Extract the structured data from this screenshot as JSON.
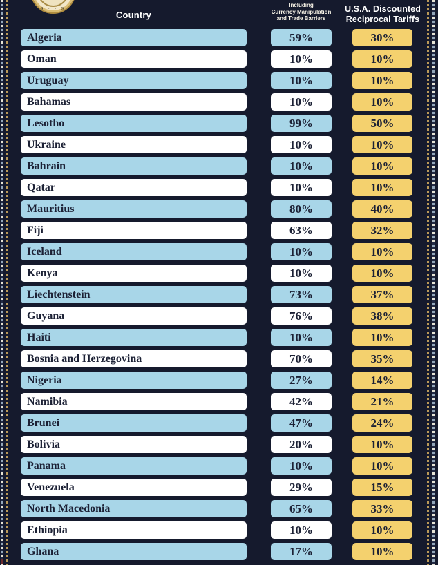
{
  "page": {
    "colors": {
      "background": "#151a2d",
      "row_blue": "#a8d6e8",
      "row_white": "#ffffff",
      "tariff_gold": "#f4d16e",
      "pill_text": "#1c2135",
      "header_text": "#ffffff",
      "border_gold": "#bb9a58",
      "border_cream": "#e7e3d4",
      "seal_gold": "#b08d3f",
      "seal_cream": "#f2e7c9"
    }
  },
  "seal": {
    "arc_text": "S · · S"
  },
  "header": {
    "country_label": "Country",
    "charged_sublabel_lines": [
      "Including",
      "Currency Manipulation",
      "and Trade Barriers"
    ],
    "discounted_label_lines": [
      "U.S.A. Discounted",
      "Reciprocal Tariffs"
    ]
  },
  "table": {
    "rows": [
      {
        "country": "Algeria",
        "charged": "59%",
        "discounted": "30%"
      },
      {
        "country": "Oman",
        "charged": "10%",
        "discounted": "10%"
      },
      {
        "country": "Uruguay",
        "charged": "10%",
        "discounted": "10%"
      },
      {
        "country": "Bahamas",
        "charged": "10%",
        "discounted": "10%"
      },
      {
        "country": "Lesotho",
        "charged": "99%",
        "discounted": "50%"
      },
      {
        "country": "Ukraine",
        "charged": "10%",
        "discounted": "10%"
      },
      {
        "country": "Bahrain",
        "charged": "10%",
        "discounted": "10%"
      },
      {
        "country": "Qatar",
        "charged": "10%",
        "discounted": "10%"
      },
      {
        "country": "Mauritius",
        "charged": "80%",
        "discounted": "40%"
      },
      {
        "country": "Fiji",
        "charged": "63%",
        "discounted": "32%"
      },
      {
        "country": "Iceland",
        "charged": "10%",
        "discounted": "10%"
      },
      {
        "country": "Kenya",
        "charged": "10%",
        "discounted": "10%"
      },
      {
        "country": "Liechtenstein",
        "charged": "73%",
        "discounted": "37%"
      },
      {
        "country": "Guyana",
        "charged": "76%",
        "discounted": "38%"
      },
      {
        "country": "Haiti",
        "charged": "10%",
        "discounted": "10%"
      },
      {
        "country": "Bosnia and Herzegovina",
        "charged": "70%",
        "discounted": "35%"
      },
      {
        "country": "Nigeria",
        "charged": "27%",
        "discounted": "14%"
      },
      {
        "country": "Namibia",
        "charged": "42%",
        "discounted": "21%"
      },
      {
        "country": "Brunei",
        "charged": "47%",
        "discounted": "24%"
      },
      {
        "country": "Bolivia",
        "charged": "20%",
        "discounted": "10%"
      },
      {
        "country": "Panama",
        "charged": "10%",
        "discounted": "10%"
      },
      {
        "country": "Venezuela",
        "charged": "29%",
        "discounted": "15%"
      },
      {
        "country": "North Macedonia",
        "charged": "65%",
        "discounted": "33%"
      },
      {
        "country": "Ethiopia",
        "charged": "10%",
        "discounted": "10%"
      },
      {
        "country": "Ghana",
        "charged": "17%",
        "discounted": "10%"
      }
    ]
  },
  "chart_data": {
    "type": "table",
    "columns": [
      "Country",
      "Including Currency Manipulation and Trade Barriers",
      "U.S.A. Discounted Reciprocal Tariffs"
    ],
    "rows": [
      [
        "Algeria",
        59,
        30
      ],
      [
        "Oman",
        10,
        10
      ],
      [
        "Uruguay",
        10,
        10
      ],
      [
        "Bahamas",
        10,
        10
      ],
      [
        "Lesotho",
        99,
        50
      ],
      [
        "Ukraine",
        10,
        10
      ],
      [
        "Bahrain",
        10,
        10
      ],
      [
        "Qatar",
        10,
        10
      ],
      [
        "Mauritius",
        80,
        40
      ],
      [
        "Fiji",
        63,
        32
      ],
      [
        "Iceland",
        10,
        10
      ],
      [
        "Kenya",
        10,
        10
      ],
      [
        "Liechtenstein",
        73,
        37
      ],
      [
        "Guyana",
        76,
        38
      ],
      [
        "Haiti",
        10,
        10
      ],
      [
        "Bosnia and Herzegovina",
        70,
        35
      ],
      [
        "Nigeria",
        27,
        14
      ],
      [
        "Namibia",
        42,
        21
      ],
      [
        "Brunei",
        47,
        24
      ],
      [
        "Bolivia",
        20,
        10
      ],
      [
        "Panama",
        10,
        10
      ],
      [
        "Venezuela",
        29,
        15
      ],
      [
        "North Macedonia",
        65,
        33
      ],
      [
        "Ethiopia",
        10,
        10
      ],
      [
        "Ghana",
        17,
        10
      ]
    ],
    "layout": {
      "row_stripe_colors": [
        "#a8d6e8",
        "#ffffff"
      ],
      "last_column_color": "#f4d16e",
      "grid": false
    }
  }
}
